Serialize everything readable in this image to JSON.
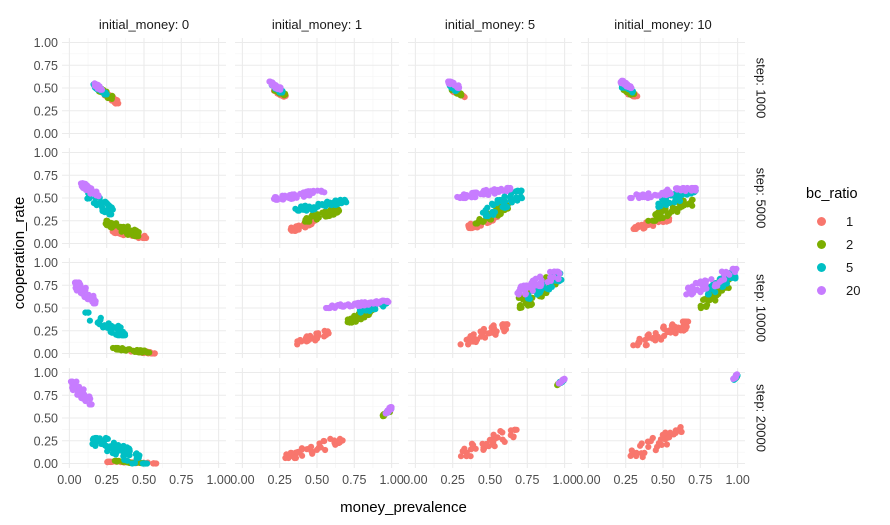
{
  "chart_data": {
    "type": "scatter",
    "title": "",
    "xlabel": "money_prevalence",
    "ylabel": "cooperation_rate",
    "xlim": [
      0,
      1
    ],
    "ylim": [
      0,
      1
    ],
    "x_ticks": [
      "0.00",
      "0.25",
      "0.50",
      "0.75",
      "1.00"
    ],
    "y_ticks": [
      "0.00",
      "0.25",
      "0.50",
      "0.75",
      "1.00"
    ],
    "grid": true,
    "facet_columns": [
      "initial_money: 0",
      "initial_money: 1",
      "initial_money: 5",
      "initial_money: 10"
    ],
    "facet_rows": [
      "step: 1000",
      "step: 5000",
      "step: 10000",
      "step: 20000"
    ],
    "legend": {
      "title": "bc_ratio",
      "placement": "right",
      "entries": [
        {
          "label": "1",
          "color": "#F8766D"
        },
        {
          "label": "2",
          "color": "#7CAE00"
        },
        {
          "label": "5",
          "color": "#00BFC4"
        },
        {
          "label": "20",
          "color": "#C77CFF"
        }
      ]
    },
    "series_colors": {
      "1": "#F8766D",
      "2": "#7CAE00",
      "5": "#00BFC4",
      "20": "#C77CFF"
    },
    "clusters": [
      {
        "row": 0,
        "col": 0,
        "bc": "1",
        "x": [
          0.22,
          0.33
        ],
        "y": [
          0.33,
          0.45
        ],
        "n": 22
      },
      {
        "row": 0,
        "col": 0,
        "bc": "2",
        "x": [
          0.19,
          0.29
        ],
        "y": [
          0.38,
          0.5
        ],
        "n": 22
      },
      {
        "row": 0,
        "col": 0,
        "bc": "5",
        "x": [
          0.16,
          0.26
        ],
        "y": [
          0.43,
          0.54
        ],
        "n": 22
      },
      {
        "row": 0,
        "col": 0,
        "bc": "20",
        "x": [
          0.15,
          0.22
        ],
        "y": [
          0.48,
          0.56
        ],
        "n": 22
      },
      {
        "row": 0,
        "col": 1,
        "bc": "1",
        "x": [
          0.21,
          0.31
        ],
        "y": [
          0.4,
          0.47
        ],
        "n": 18
      },
      {
        "row": 0,
        "col": 1,
        "bc": "2",
        "x": [
          0.2,
          0.29
        ],
        "y": [
          0.42,
          0.5
        ],
        "n": 18
      },
      {
        "row": 0,
        "col": 1,
        "bc": "5",
        "x": [
          0.19,
          0.27
        ],
        "y": [
          0.45,
          0.53
        ],
        "n": 18
      },
      {
        "row": 0,
        "col": 1,
        "bc": "20",
        "x": [
          0.18,
          0.26
        ],
        "y": [
          0.48,
          0.57
        ],
        "n": 22
      },
      {
        "row": 0,
        "col": 2,
        "bc": "1",
        "x": [
          0.25,
          0.33
        ],
        "y": [
          0.4,
          0.47
        ],
        "n": 18
      },
      {
        "row": 0,
        "col": 2,
        "bc": "2",
        "x": [
          0.24,
          0.31
        ],
        "y": [
          0.42,
          0.5
        ],
        "n": 18
      },
      {
        "row": 0,
        "col": 2,
        "bc": "5",
        "x": [
          0.23,
          0.3
        ],
        "y": [
          0.45,
          0.53
        ],
        "n": 18
      },
      {
        "row": 0,
        "col": 2,
        "bc": "20",
        "x": [
          0.22,
          0.3
        ],
        "y": [
          0.5,
          0.57
        ],
        "n": 22
      },
      {
        "row": 0,
        "col": 3,
        "bc": "1",
        "x": [
          0.24,
          0.33
        ],
        "y": [
          0.4,
          0.47
        ],
        "n": 18
      },
      {
        "row": 0,
        "col": 3,
        "bc": "2",
        "x": [
          0.23,
          0.31
        ],
        "y": [
          0.42,
          0.5
        ],
        "n": 18
      },
      {
        "row": 0,
        "col": 3,
        "bc": "5",
        "x": [
          0.22,
          0.3
        ],
        "y": [
          0.45,
          0.53
        ],
        "n": 18
      },
      {
        "row": 0,
        "col": 3,
        "bc": "20",
        "x": [
          0.21,
          0.29
        ],
        "y": [
          0.5,
          0.58
        ],
        "n": 22
      },
      {
        "row": 1,
        "col": 0,
        "bc": "1",
        "x": [
          0.28,
          0.52
        ],
        "y": [
          0.06,
          0.14
        ],
        "n": 40
      },
      {
        "row": 1,
        "col": 0,
        "bc": "2",
        "x": [
          0.24,
          0.48
        ],
        "y": [
          0.08,
          0.25
        ],
        "n": 45
      },
      {
        "row": 1,
        "col": 0,
        "bc": "5",
        "x": [
          0.12,
          0.3
        ],
        "y": [
          0.32,
          0.55
        ],
        "n": 35
      },
      {
        "row": 1,
        "col": 0,
        "bc": "20",
        "x": [
          0.07,
          0.2
        ],
        "y": [
          0.52,
          0.66
        ],
        "n": 30
      },
      {
        "row": 1,
        "col": 1,
        "bc": "1",
        "x": [
          0.32,
          0.5
        ],
        "y": [
          0.14,
          0.25
        ],
        "n": 30
      },
      {
        "row": 1,
        "col": 1,
        "bc": "2",
        "x": [
          0.4,
          0.65
        ],
        "y": [
          0.24,
          0.37
        ],
        "n": 40
      },
      {
        "row": 1,
        "col": 1,
        "bc": "5",
        "x": [
          0.35,
          0.7
        ],
        "y": [
          0.36,
          0.48
        ],
        "n": 45
      },
      {
        "row": 1,
        "col": 1,
        "bc": "20",
        "x": [
          0.2,
          0.55
        ],
        "y": [
          0.48,
          0.58
        ],
        "n": 45
      },
      {
        "row": 1,
        "col": 2,
        "bc": "1",
        "x": [
          0.35,
          0.55
        ],
        "y": [
          0.17,
          0.3
        ],
        "n": 40
      },
      {
        "row": 1,
        "col": 2,
        "bc": "2",
        "x": [
          0.4,
          0.62
        ],
        "y": [
          0.22,
          0.42
        ],
        "n": 45
      },
      {
        "row": 1,
        "col": 2,
        "bc": "5",
        "x": [
          0.45,
          0.72
        ],
        "y": [
          0.3,
          0.58
        ],
        "n": 40
      },
      {
        "row": 1,
        "col": 2,
        "bc": "20",
        "x": [
          0.28,
          0.65
        ],
        "y": [
          0.5,
          0.61
        ],
        "n": 50
      },
      {
        "row": 1,
        "col": 3,
        "bc": "1",
        "x": [
          0.3,
          0.55
        ],
        "y": [
          0.16,
          0.28
        ],
        "n": 40
      },
      {
        "row": 1,
        "col": 3,
        "bc": "2",
        "x": [
          0.4,
          0.7
        ],
        "y": [
          0.25,
          0.48
        ],
        "n": 45
      },
      {
        "row": 1,
        "col": 3,
        "bc": "5",
        "x": [
          0.45,
          0.72
        ],
        "y": [
          0.4,
          0.6
        ],
        "n": 40
      },
      {
        "row": 1,
        "col": 3,
        "bc": "20",
        "x": [
          0.28,
          0.72
        ],
        "y": [
          0.5,
          0.61
        ],
        "n": 50
      },
      {
        "row": 2,
        "col": 0,
        "bc": "1",
        "x": [
          0.38,
          0.58
        ],
        "y": [
          0.0,
          0.04
        ],
        "n": 25
      },
      {
        "row": 2,
        "col": 0,
        "bc": "2",
        "x": [
          0.28,
          0.55
        ],
        "y": [
          0.01,
          0.06
        ],
        "n": 40
      },
      {
        "row": 2,
        "col": 0,
        "bc": "5",
        "x": [
          0.1,
          0.38
        ],
        "y": [
          0.2,
          0.45
        ],
        "n": 40
      },
      {
        "row": 2,
        "col": 0,
        "bc": "20",
        "x": [
          0.03,
          0.18
        ],
        "y": [
          0.55,
          0.78
        ],
        "n": 35
      },
      {
        "row": 2,
        "col": 1,
        "bc": "1",
        "x": [
          0.35,
          0.6
        ],
        "y": [
          0.1,
          0.25
        ],
        "n": 22
      },
      {
        "row": 2,
        "col": 1,
        "bc": "2",
        "x": [
          0.7,
          0.88
        ],
        "y": [
          0.34,
          0.48
        ],
        "n": 35
      },
      {
        "row": 2,
        "col": 1,
        "bc": "5",
        "x": [
          0.78,
          0.97
        ],
        "y": [
          0.45,
          0.55
        ],
        "n": 30
      },
      {
        "row": 2,
        "col": 1,
        "bc": "20",
        "x": [
          0.55,
          0.98
        ],
        "y": [
          0.5,
          0.58
        ],
        "n": 50
      },
      {
        "row": 2,
        "col": 2,
        "bc": "1",
        "x": [
          0.3,
          0.62
        ],
        "y": [
          0.1,
          0.32
        ],
        "n": 40
      },
      {
        "row": 2,
        "col": 2,
        "bc": "2",
        "x": [
          0.68,
          0.95
        ],
        "y": [
          0.5,
          0.85
        ],
        "n": 45
      },
      {
        "row": 2,
        "col": 2,
        "bc": "5",
        "x": [
          0.75,
          0.98
        ],
        "y": [
          0.6,
          0.88
        ],
        "n": 40
      },
      {
        "row": 2,
        "col": 2,
        "bc": "20",
        "x": [
          0.68,
          0.98
        ],
        "y": [
          0.65,
          0.9
        ],
        "n": 45
      },
      {
        "row": 2,
        "col": 3,
        "bc": "1",
        "x": [
          0.3,
          0.68
        ],
        "y": [
          0.09,
          0.35
        ],
        "n": 45
      },
      {
        "row": 2,
        "col": 3,
        "bc": "2",
        "x": [
          0.75,
          0.98
        ],
        "y": [
          0.5,
          0.88
        ],
        "n": 45
      },
      {
        "row": 2,
        "col": 3,
        "bc": "5",
        "x": [
          0.8,
          0.99
        ],
        "y": [
          0.65,
          0.9
        ],
        "n": 40
      },
      {
        "row": 2,
        "col": 3,
        "bc": "20",
        "x": [
          0.65,
          1.0
        ],
        "y": [
          0.65,
          0.93
        ],
        "n": 45
      },
      {
        "row": 3,
        "col": 0,
        "bc": "1",
        "x": [
          0.25,
          0.62
        ],
        "y": [
          0.0,
          0.02
        ],
        "n": 40
      },
      {
        "row": 3,
        "col": 0,
        "bc": "2",
        "x": [
          0.3,
          0.5
        ],
        "y": [
          0.0,
          0.03
        ],
        "n": 25
      },
      {
        "row": 3,
        "col": 0,
        "bc": "5",
        "x": [
          0.15,
          0.52
        ],
        "y": [
          0.0,
          0.28
        ],
        "n": 70
      },
      {
        "row": 3,
        "col": 0,
        "bc": "20",
        "x": [
          0.01,
          0.15
        ],
        "y": [
          0.65,
          0.9
        ],
        "n": 40
      },
      {
        "row": 3,
        "col": 1,
        "bc": "1",
        "x": [
          0.28,
          0.68
        ],
        "y": [
          0.06,
          0.27
        ],
        "n": 40
      },
      {
        "row": 3,
        "col": 1,
        "bc": "2",
        "x": [
          0.94,
          0.99
        ],
        "y": [
          0.52,
          0.58
        ],
        "n": 15
      },
      {
        "row": 3,
        "col": 1,
        "bc": "5",
        "x": [
          0.96,
          1.0
        ],
        "y": [
          0.54,
          0.6
        ],
        "n": 10
      },
      {
        "row": 3,
        "col": 1,
        "bc": "20",
        "x": [
          0.96,
          1.0
        ],
        "y": [
          0.55,
          0.62
        ],
        "n": 12
      },
      {
        "row": 3,
        "col": 2,
        "bc": "1",
        "x": [
          0.3,
          0.68
        ],
        "y": [
          0.08,
          0.37
        ],
        "n": 40
      },
      {
        "row": 3,
        "col": 2,
        "bc": "2",
        "x": [
          0.95,
          0.99
        ],
        "y": [
          0.86,
          0.91
        ],
        "n": 10
      },
      {
        "row": 3,
        "col": 2,
        "bc": "5",
        "x": [
          0.96,
          1.0
        ],
        "y": [
          0.88,
          0.92
        ],
        "n": 8
      },
      {
        "row": 3,
        "col": 2,
        "bc": "20",
        "x": [
          0.96,
          1.0
        ],
        "y": [
          0.88,
          0.93
        ],
        "n": 10
      },
      {
        "row": 3,
        "col": 3,
        "bc": "1",
        "x": [
          0.28,
          0.65
        ],
        "y": [
          0.07,
          0.4
        ],
        "n": 40
      },
      {
        "row": 3,
        "col": 3,
        "bc": "2",
        "x": [
          0.97,
          1.0
        ],
        "y": [
          0.92,
          0.96
        ],
        "n": 8
      },
      {
        "row": 3,
        "col": 3,
        "bc": "5",
        "x": [
          0.97,
          1.0
        ],
        "y": [
          0.92,
          0.97
        ],
        "n": 8
      },
      {
        "row": 3,
        "col": 3,
        "bc": "20",
        "x": [
          0.97,
          1.0
        ],
        "y": [
          0.93,
          0.98
        ],
        "n": 10
      }
    ]
  }
}
